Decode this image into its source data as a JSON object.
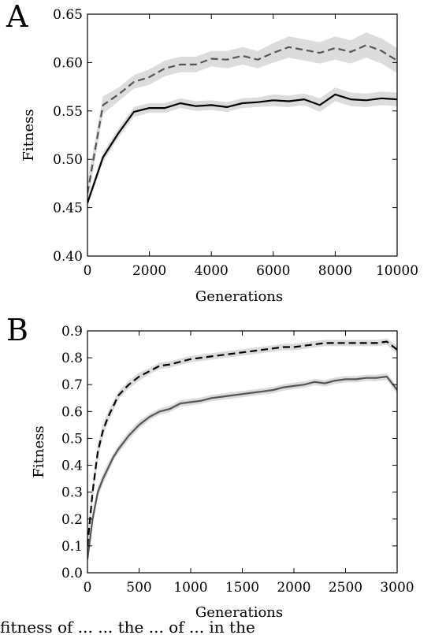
{
  "panels": {
    "a_letter": "A",
    "b_letter": "B"
  },
  "caption_fragment": "fitness of ... ... the ... of ... in the",
  "chart_data": [
    {
      "type": "line",
      "panel": "A",
      "title": "",
      "xlabel": "Generations",
      "ylabel": "Fitness",
      "xlim": [
        0,
        10000
      ],
      "ylim": [
        0.4,
        0.65
      ],
      "xticks": [
        0,
        2000,
        4000,
        6000,
        8000,
        10000
      ],
      "yticks": [
        0.4,
        0.45,
        0.5,
        0.55,
        0.6,
        0.65
      ],
      "ytick_format": 2,
      "grid": false,
      "series": [
        {
          "style": "dashed",
          "color": "#555555",
          "band_color": "#dcdcdc",
          "x": [
            0,
            500,
            1000,
            1500,
            2000,
            2500,
            3000,
            3500,
            4000,
            4500,
            5000,
            5500,
            6000,
            6500,
            7000,
            7500,
            8000,
            8500,
            9000,
            9500,
            10000
          ],
          "y": [
            0.465,
            0.556,
            0.567,
            0.58,
            0.585,
            0.594,
            0.598,
            0.598,
            0.604,
            0.603,
            0.607,
            0.603,
            0.61,
            0.616,
            0.613,
            0.61,
            0.615,
            0.611,
            0.618,
            0.612,
            0.602
          ],
          "band": [
            0.012,
            0.009,
            0.007,
            0.007,
            0.008,
            0.008,
            0.008,
            0.008,
            0.008,
            0.009,
            0.009,
            0.009,
            0.01,
            0.011,
            0.011,
            0.011,
            0.012,
            0.012,
            0.013,
            0.013,
            0.013
          ]
        },
        {
          "style": "solid",
          "color": "#000000",
          "band_color": "#dcdcdc",
          "x": [
            0,
            500,
            1000,
            1500,
            2000,
            2500,
            3000,
            3500,
            4000,
            4500,
            5000,
            5500,
            6000,
            6500,
            7000,
            7500,
            8000,
            8500,
            9000,
            9500,
            10000
          ],
          "y": [
            0.455,
            0.502,
            0.527,
            0.549,
            0.553,
            0.553,
            0.558,
            0.555,
            0.556,
            0.554,
            0.558,
            0.559,
            0.561,
            0.56,
            0.562,
            0.556,
            0.567,
            0.562,
            0.561,
            0.563,
            0.562
          ],
          "band": [
            0.004,
            0.005,
            0.005,
            0.005,
            0.005,
            0.005,
            0.005,
            0.005,
            0.005,
            0.005,
            0.005,
            0.005,
            0.006,
            0.006,
            0.006,
            0.007,
            0.007,
            0.007,
            0.007,
            0.007,
            0.007
          ]
        }
      ]
    },
    {
      "type": "line",
      "panel": "B",
      "title": "",
      "xlabel": "Generations",
      "ylabel": "Fitness",
      "xlim": [
        0,
        3000
      ],
      "ylim": [
        0.0,
        0.9
      ],
      "xticks": [
        0,
        500,
        1000,
        1500,
        2000,
        2500,
        3000
      ],
      "yticks": [
        0.0,
        0.1,
        0.2,
        0.3,
        0.4,
        0.5,
        0.6,
        0.7,
        0.8,
        0.9
      ],
      "ytick_format": 1,
      "grid": false,
      "series": [
        {
          "style": "dashed",
          "color": "#000000",
          "band_color": "#dcdcdc",
          "x": [
            0,
            50,
            100,
            150,
            200,
            250,
            300,
            400,
            500,
            600,
            700,
            800,
            900,
            1000,
            1100,
            1200,
            1300,
            1400,
            1500,
            1600,
            1700,
            1800,
            1900,
            2000,
            2100,
            2200,
            2300,
            2400,
            2500,
            2600,
            2700,
            2800,
            2900,
            3000
          ],
          "y": [
            0.1,
            0.3,
            0.45,
            0.53,
            0.58,
            0.62,
            0.66,
            0.7,
            0.73,
            0.75,
            0.77,
            0.775,
            0.785,
            0.795,
            0.8,
            0.805,
            0.81,
            0.815,
            0.82,
            0.825,
            0.83,
            0.835,
            0.84,
            0.84,
            0.845,
            0.85,
            0.855,
            0.855,
            0.855,
            0.855,
            0.855,
            0.855,
            0.86,
            0.83
          ],
          "band": [
            0.03,
            0.03,
            0.03,
            0.025,
            0.02,
            0.02,
            0.015,
            0.015,
            0.015,
            0.012,
            0.012,
            0.012,
            0.012,
            0.012,
            0.012,
            0.012,
            0.012,
            0.012,
            0.012,
            0.012,
            0.012,
            0.012,
            0.012,
            0.012,
            0.012,
            0.012,
            0.012,
            0.012,
            0.012,
            0.012,
            0.012,
            0.012,
            0.012,
            0.015
          ]
        },
        {
          "style": "solid",
          "color": "#555555",
          "band_color": "#dcdcdc",
          "x": [
            0,
            50,
            100,
            150,
            200,
            250,
            300,
            400,
            500,
            600,
            700,
            800,
            900,
            1000,
            1100,
            1200,
            1300,
            1400,
            1500,
            1600,
            1700,
            1800,
            1900,
            2000,
            2100,
            2200,
            2300,
            2400,
            2500,
            2600,
            2700,
            2800,
            2900,
            3000
          ],
          "y": [
            0.05,
            0.2,
            0.3,
            0.35,
            0.39,
            0.43,
            0.46,
            0.51,
            0.55,
            0.58,
            0.6,
            0.61,
            0.63,
            0.635,
            0.64,
            0.65,
            0.655,
            0.66,
            0.665,
            0.67,
            0.675,
            0.68,
            0.69,
            0.695,
            0.7,
            0.71,
            0.705,
            0.715,
            0.72,
            0.72,
            0.725,
            0.725,
            0.73,
            0.68
          ],
          "band": [
            0.02,
            0.02,
            0.02,
            0.02,
            0.02,
            0.015,
            0.015,
            0.015,
            0.015,
            0.012,
            0.012,
            0.012,
            0.012,
            0.012,
            0.012,
            0.012,
            0.012,
            0.012,
            0.012,
            0.012,
            0.012,
            0.012,
            0.012,
            0.012,
            0.012,
            0.012,
            0.012,
            0.012,
            0.012,
            0.012,
            0.012,
            0.012,
            0.012,
            0.015
          ]
        }
      ]
    }
  ]
}
